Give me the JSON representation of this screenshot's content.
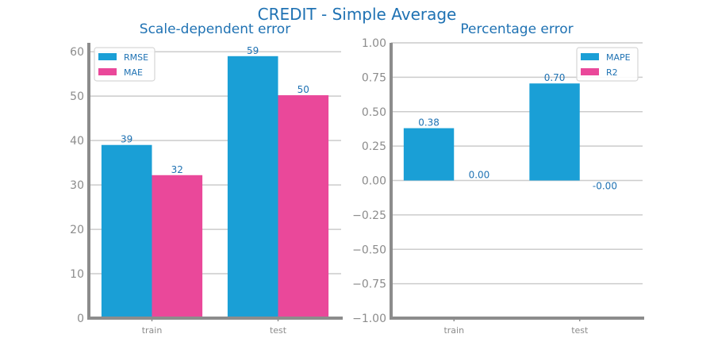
{
  "title": "CREDIT - Simple Average",
  "colors": {
    "series1": "#1a9fd6",
    "series2": "#ea489a",
    "text": "#1f72b3",
    "axis": "#8c8c8c",
    "grid": "#cccccc"
  },
  "chart_data": [
    {
      "type": "bar",
      "title": "Scale-dependent error",
      "categories": [
        "train",
        "test"
      ],
      "series": [
        {
          "name": "RMSE",
          "values": [
            39,
            59
          ],
          "labels": [
            "39",
            "59"
          ]
        },
        {
          "name": "MAE",
          "values": [
            32.2,
            50.2
          ],
          "labels": [
            "32",
            "50"
          ]
        }
      ],
      "ylim": [
        0,
        62
      ],
      "yticks": [
        0,
        10,
        20,
        30,
        40,
        50,
        60
      ],
      "ytick_labels": [
        "0",
        "10",
        "20",
        "30",
        "40",
        "50",
        "60"
      ],
      "grid": true,
      "legend": "top-left"
    },
    {
      "type": "bar",
      "title": "Percentage error",
      "categories": [
        "train",
        "test"
      ],
      "series": [
        {
          "name": "MAPE",
          "values": [
            0.38,
            0.705
          ],
          "labels": [
            "0.38",
            "0.70"
          ]
        },
        {
          "name": "R2",
          "values": [
            0.0,
            -0.0
          ],
          "labels": [
            "0.00",
            "-0.00"
          ]
        }
      ],
      "ylim": [
        -1.0,
        1.0
      ],
      "yticks": [
        -1.0,
        -0.75,
        -0.5,
        -0.25,
        0.0,
        0.25,
        0.5,
        0.75,
        1.0
      ],
      "ytick_labels": [
        "−1.00",
        "−0.75",
        "−0.50",
        "−0.25",
        "0.00",
        "0.25",
        "0.50",
        "0.75",
        "1.00"
      ],
      "grid": true,
      "legend": "top-right"
    }
  ]
}
